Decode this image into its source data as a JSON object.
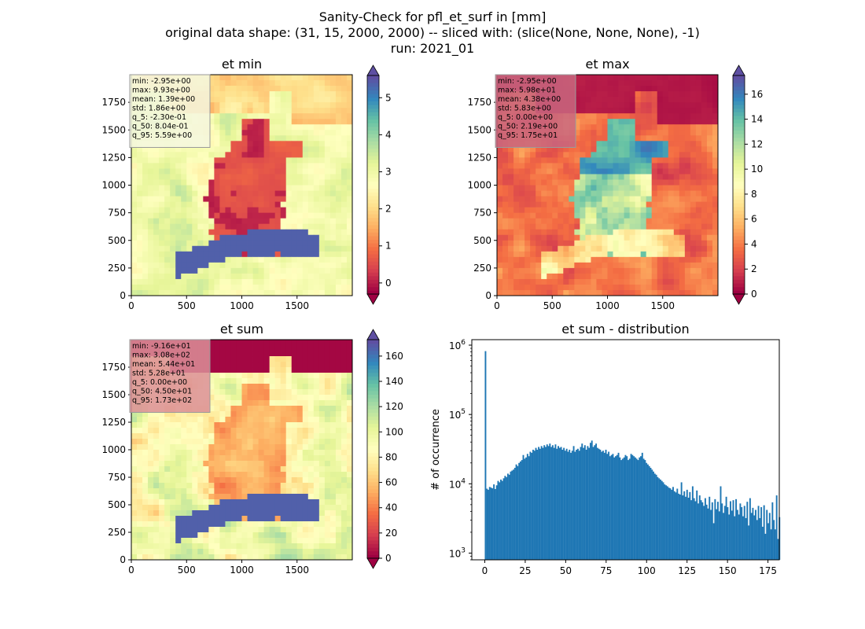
{
  "suptitle": {
    "line1": "Sanity-Check for pfl_et_surf in [mm]",
    "line2": "original data shape: (31, 15, 2000, 2000) -- sliced with: (slice(None, None, None), -1)",
    "line3": "run: 2021_01"
  },
  "colors": {
    "spectral": [
      "#9e0142",
      "#d53e4f",
      "#f46d43",
      "#fdae61",
      "#fee08b",
      "#ffffbf",
      "#e6f598",
      "#abdda4",
      "#66c2a5",
      "#3288bd",
      "#5e4fa2"
    ],
    "hist_bar": "#1f77b4",
    "stats_box_pale": "#f5f7df",
    "stats_box_red": "#c9677f",
    "stats_box_pink": "#dc8f98"
  },
  "chart_data": [
    {
      "type": "heatmap",
      "title": "et min",
      "xlabel": "",
      "ylabel": "",
      "xlim": [
        0,
        2000
      ],
      "ylim": [
        0,
        2000
      ],
      "xticks": [
        0,
        500,
        1000,
        1500
      ],
      "yticks": [
        0,
        250,
        500,
        750,
        1000,
        1250,
        1500,
        1750
      ],
      "colorbar": {
        "range": [
          -0.3,
          5.6
        ],
        "ticks": [
          0,
          1,
          2,
          3,
          4,
          5
        ],
        "colormap": "Spectral",
        "extend": "both"
      },
      "stats_box_color": "pale",
      "stats": [
        "min: -2.95e+00",
        "max: 9.93e+00",
        "mean: 1.39e+00",
        "std: 1.86e+00",
        "q_5: -2.30e-01",
        "q_50: 8.04e-01",
        "q_95: 5.59e+00"
      ]
    },
    {
      "type": "heatmap",
      "title": "et max",
      "xlabel": "",
      "ylabel": "",
      "xlim": [
        0,
        2000
      ],
      "ylim": [
        0,
        2000
      ],
      "xticks": [
        0,
        500,
        1000,
        1500
      ],
      "yticks": [
        0,
        250,
        500,
        750,
        1000,
        1250,
        1500,
        1750
      ],
      "colorbar": {
        "range": [
          0,
          17.5
        ],
        "ticks": [
          0,
          2,
          4,
          6,
          8,
          10,
          12,
          14,
          16
        ],
        "colormap": "Spectral",
        "extend": "both"
      },
      "stats_box_color": "red",
      "stats": [
        "min: -2.95e+00",
        "max: 5.98e+01",
        "mean: 4.38e+00",
        "std: 5.83e+00",
        "q_5: 0.00e+00",
        "q_50: 2.19e+00",
        "q_95: 1.75e+01"
      ]
    },
    {
      "type": "heatmap",
      "title": "et sum",
      "xlabel": "",
      "ylabel": "",
      "xlim": [
        0,
        2000
      ],
      "ylim": [
        0,
        2000
      ],
      "xticks": [
        0,
        500,
        1000,
        1500
      ],
      "yticks": [
        0,
        250,
        500,
        750,
        1000,
        1250,
        1500,
        1750
      ],
      "colorbar": {
        "range": [
          0,
          173
        ],
        "ticks": [
          0,
          20,
          40,
          60,
          80,
          100,
          120,
          140,
          160
        ],
        "colormap": "Spectral",
        "extend": "both"
      },
      "stats_box_color": "pink",
      "stats": [
        "min: -9.16e+01",
        "max: 3.08e+02",
        "mean: 5.44e+01",
        "std: 5.28e+01",
        "q_5: 0.00e+00",
        "q_50: 4.50e+01",
        "q_95: 1.73e+02"
      ]
    },
    {
      "type": "bar",
      "title": "et sum - distribution",
      "xlabel": "",
      "ylabel": "# of occurrence",
      "yscale": "log",
      "xlim": [
        -8,
        182
      ],
      "ylim": [
        800,
        1200000
      ],
      "xticks": [
        0,
        25,
        50,
        75,
        100,
        125,
        150,
        175
      ],
      "yticks": [
        {
          "value": 1000,
          "base": "10",
          "exp": "3"
        },
        {
          "value": 10000,
          "base": "10",
          "exp": "4"
        },
        {
          "value": 100000,
          "base": "10",
          "exp": "5"
        },
        {
          "value": 1000000,
          "base": "10",
          "exp": "6"
        }
      ],
      "bin_edges_start": 0,
      "bin_width": 0.865,
      "counts": [
        820000,
        8500,
        8200,
        9000,
        8800,
        8600,
        9800,
        8400,
        9500,
        11000,
        10500,
        11500,
        11000,
        12000,
        13000,
        12500,
        14000,
        13500,
        15000,
        15500,
        16000,
        17000,
        19000,
        18000,
        20000,
        21000,
        22000,
        26000,
        23000,
        24000,
        27000,
        25000,
        29000,
        28000,
        31000,
        30000,
        33000,
        31000,
        34000,
        32000,
        35000,
        33000,
        36000,
        34000,
        37000,
        35000,
        38000,
        34000,
        36000,
        33000,
        37000,
        32000,
        35000,
        33000,
        34000,
        31000,
        33000,
        30000,
        32000,
        29000,
        31000,
        28000,
        30000,
        35000,
        29000,
        31000,
        32000,
        30000,
        34000,
        38000,
        33000,
        36000,
        31000,
        35000,
        33000,
        39000,
        42000,
        34000,
        36000,
        38000,
        33000,
        32000,
        31000,
        29000,
        30000,
        28000,
        31000,
        27000,
        29000,
        25000,
        26000,
        27000,
        24000,
        25000,
        26000,
        28000,
        24000,
        22000,
        23000,
        24000,
        26000,
        25000,
        22000,
        23000,
        27000,
        26000,
        25000,
        24000,
        23000,
        22000,
        24000,
        25000,
        28000,
        23000,
        22000,
        20000,
        19000,
        18000,
        17000,
        16000,
        15000,
        14000,
        13500,
        12500,
        12000,
        11500,
        11000,
        10500,
        9800,
        9500,
        9200,
        8800,
        8600,
        8200,
        9000,
        7800,
        7500,
        8500,
        7200,
        7000,
        10500,
        6800,
        7800,
        6500,
        8200,
        6300,
        7600,
        5800,
        9200,
        6200,
        5600,
        8000,
        5200,
        6800,
        5800,
        5400,
        4800,
        6200,
        5000,
        4400,
        6500,
        4200,
        5400,
        2700,
        6000,
        4300,
        5500,
        4000,
        9200,
        5200,
        3800,
        4800,
        6500,
        4600,
        3600,
        5600,
        4100,
        5800,
        3400,
        6000,
        4200,
        3600,
        5200,
        4600,
        3400,
        4800,
        3200,
        5500,
        2500,
        6200,
        3800,
        4500,
        3500,
        4200,
        3000,
        4800,
        3200,
        4600,
        2400,
        4900,
        1900,
        4200,
        2700,
        3800,
        2200,
        5400,
        3000,
        2200,
        6800,
        1600,
        3300
      ]
    }
  ]
}
